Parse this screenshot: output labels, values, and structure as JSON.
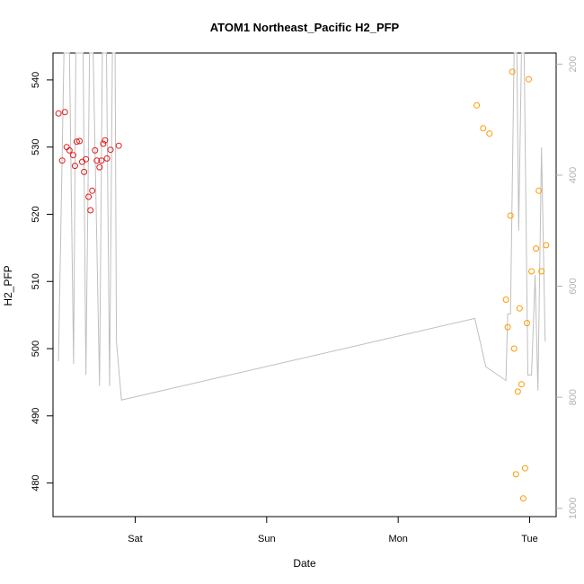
{
  "chart_data": {
    "type": "scatter",
    "title": "ATOM1 Northeast_Pacific H2_PFP",
    "xlabel": "Date",
    "ylabel": "H2_PFP",
    "x_ticks": [
      "Sat",
      "Sun",
      "Mon",
      "Tue"
    ],
    "x_tick_dates": [
      "2016-08-20",
      "2016-08-21",
      "2016-08-22",
      "2016-08-23"
    ],
    "x_lim": [
      "2016-08-19 09:00",
      "2016-08-23 04:50"
    ],
    "ylim": [
      475,
      544
    ],
    "y_ticks": [
      480,
      490,
      500,
      510,
      520,
      530,
      540
    ],
    "secondary_axis": {
      "ticks": [
        200,
        400,
        600,
        800,
        1000
      ],
      "lim": [
        1015,
        180
      ],
      "reversed": true,
      "color": "#b3b3b3"
    },
    "grid": false,
    "series": [
      {
        "color": "#e31a1c",
        "marker": "open-circle",
        "points": [
          [
            "2016-08-19 10:00",
            535.0
          ],
          [
            "2016-08-19 10:40",
            528.0
          ],
          [
            "2016-08-19 11:10",
            535.2
          ],
          [
            "2016-08-19 11:30",
            530.0
          ],
          [
            "2016-08-19 12:00",
            529.5
          ],
          [
            "2016-08-19 12:40",
            528.8
          ],
          [
            "2016-08-19 13:00",
            527.2
          ],
          [
            "2016-08-19 13:20",
            530.8
          ],
          [
            "2016-08-19 13:50",
            530.9
          ],
          [
            "2016-08-19 14:20",
            527.8
          ],
          [
            "2016-08-19 14:40",
            526.3
          ],
          [
            "2016-08-19 15:00",
            528.2
          ],
          [
            "2016-08-19 15:30",
            522.6
          ],
          [
            "2016-08-19 15:50",
            520.6
          ],
          [
            "2016-08-19 16:10",
            523.5
          ],
          [
            "2016-08-19 16:40",
            529.5
          ],
          [
            "2016-08-19 17:00",
            528.0
          ],
          [
            "2016-08-19 17:30",
            527.0
          ],
          [
            "2016-08-19 17:50",
            528.0
          ],
          [
            "2016-08-19 18:10",
            530.5
          ],
          [
            "2016-08-19 18:30",
            531.0
          ],
          [
            "2016-08-19 18:50",
            528.3
          ],
          [
            "2016-08-19 19:30",
            529.6
          ],
          [
            "2016-08-19 21:00",
            530.2
          ]
        ]
      },
      {
        "color": "#ff9900",
        "marker": "open-circle",
        "points": [
          [
            "2016-08-22 14:20",
            536.2
          ],
          [
            "2016-08-22 15:30",
            532.8
          ],
          [
            "2016-08-22 16:40",
            532.0
          ],
          [
            "2016-08-22 19:40",
            507.3
          ],
          [
            "2016-08-22 20:00",
            503.2
          ],
          [
            "2016-08-22 20:30",
            519.8
          ],
          [
            "2016-08-22 20:50",
            541.2
          ],
          [
            "2016-08-22 21:10",
            500.0
          ],
          [
            "2016-08-22 21:30",
            481.3
          ],
          [
            "2016-08-22 21:50",
            493.6
          ],
          [
            "2016-08-22 22:10",
            506.0
          ],
          [
            "2016-08-22 22:30",
            494.7
          ],
          [
            "2016-08-22 22:50",
            477.7
          ],
          [
            "2016-08-22 23:10",
            482.2
          ],
          [
            "2016-08-22 23:30",
            503.8
          ],
          [
            "2016-08-22 23:50",
            540.1
          ],
          [
            "2016-08-23 00:20",
            511.5
          ],
          [
            "2016-08-23 01:10",
            514.9
          ],
          [
            "2016-08-23 01:40",
            523.5
          ],
          [
            "2016-08-23 02:10",
            511.5
          ],
          [
            "2016-08-23 03:00",
            515.4
          ]
        ]
      },
      {
        "color": "#bfbfbf",
        "type": "line",
        "axis": "secondary",
        "points": [
          [
            "2016-08-19 10:00",
            735
          ],
          [
            "2016-08-19 11:00",
            180
          ],
          [
            "2016-08-19 12:00",
            180
          ],
          [
            "2016-08-19 12:45",
            740
          ],
          [
            "2016-08-19 13:10",
            180
          ],
          [
            "2016-08-19 14:30",
            180
          ],
          [
            "2016-08-19 15:00",
            760
          ],
          [
            "2016-08-19 15:40",
            180
          ],
          [
            "2016-08-19 16:20",
            180
          ],
          [
            "2016-08-19 17:30",
            780
          ],
          [
            "2016-08-19 18:00",
            180
          ],
          [
            "2016-08-19 18:45",
            180
          ],
          [
            "2016-08-19 19:20",
            780
          ],
          [
            "2016-08-19 19:50",
            180
          ],
          [
            "2016-08-19 20:20",
            180
          ],
          [
            "2016-08-19 20:35",
            700
          ],
          [
            "2016-08-19 21:30",
            805
          ],
          [
            "2016-08-22 14:00",
            658
          ],
          [
            "2016-08-22 16:00",
            745
          ],
          [
            "2016-08-22 19:40",
            770
          ],
          [
            "2016-08-22 20:00",
            650
          ],
          [
            "2016-08-22 20:30",
            650
          ],
          [
            "2016-08-22 21:10",
            180
          ],
          [
            "2016-08-22 21:40",
            180
          ],
          [
            "2016-08-22 22:00",
            500
          ],
          [
            "2016-08-22 22:30",
            180
          ],
          [
            "2016-08-22 23:00",
            180
          ],
          [
            "2016-08-22 23:40",
            760
          ],
          [
            "2016-08-23 00:20",
            760
          ],
          [
            "2016-08-23 01:00",
            580
          ],
          [
            "2016-08-23 01:30",
            788
          ],
          [
            "2016-08-23 02:10",
            350
          ],
          [
            "2016-08-23 02:50",
            700
          ]
        ]
      }
    ]
  }
}
